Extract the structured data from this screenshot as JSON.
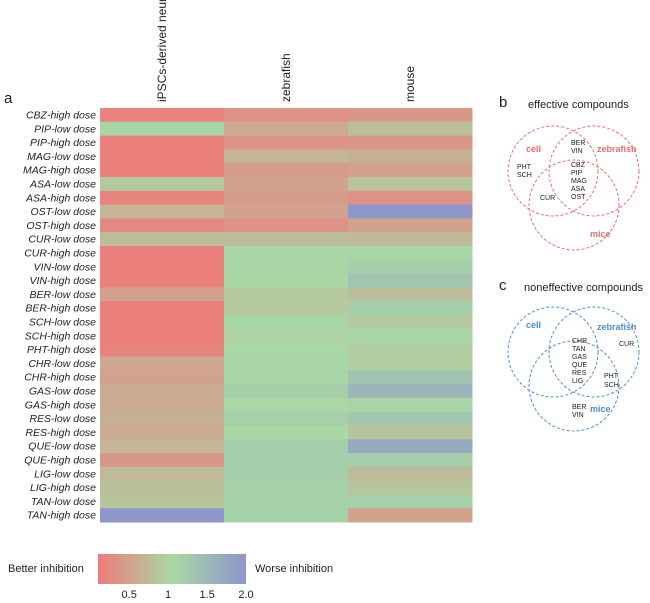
{
  "chart_data": [
    {
      "panel": "a",
      "type": "heatmap",
      "columns": [
        "iPSCs-derived neurons",
        "zebrafish",
        "mouse"
      ],
      "rows": [
        "CBZ-high dose",
        "PIP-low dose",
        "PIP-high dose",
        "MAG-low dose",
        "MAG-high dose",
        "ASA-low dose",
        "ASA-high dose",
        "OST-low dose",
        "OST-high dose",
        "CUR-low dose",
        "CUR-high dose",
        "VIN-low dose",
        "VIN-high dose",
        "BER-low dose",
        "BER-high dose",
        "SCH-low dose",
        "SCH-high dose",
        "PHT-high dose",
        "CHR-low dose",
        "CHR-high dose",
        "GAS-low dose",
        "GAS-high dose",
        "RES-low dose",
        "RES-high dose",
        "QUE-low dose",
        "QUE-high dose",
        "LIG-low dose",
        "LIG-high dose",
        "TAN-low dose",
        "TAN-high dose"
      ],
      "values": [
        [
          0.2,
          0.35,
          0.4
        ],
        [
          1.1,
          0.6,
          0.8
        ],
        [
          0.15,
          0.35,
          0.4
        ],
        [
          0.15,
          0.7,
          0.65
        ],
        [
          0.15,
          0.45,
          0.5
        ],
        [
          0.9,
          0.5,
          0.85
        ],
        [
          0.2,
          0.45,
          0.35
        ],
        [
          0.7,
          0.5,
          2.0
        ],
        [
          0.25,
          0.35,
          0.5
        ],
        [
          0.8,
          0.8,
          0.75
        ],
        [
          0.15,
          1.1,
          1.1
        ],
        [
          0.15,
          1.1,
          1.2
        ],
        [
          0.15,
          1.05,
          1.35
        ],
        [
          0.5,
          0.9,
          0.8
        ],
        [
          0.15,
          0.9,
          1.2
        ],
        [
          0.15,
          1.1,
          0.9
        ],
        [
          0.15,
          1.0,
          1.1
        ],
        [
          0.2,
          1.05,
          0.95
        ],
        [
          0.55,
          1.1,
          0.95
        ],
        [
          0.5,
          1.1,
          1.35
        ],
        [
          0.6,
          1.2,
          1.55
        ],
        [
          0.6,
          1.05,
          1.1
        ],
        [
          0.65,
          1.15,
          1.3
        ],
        [
          0.6,
          1.05,
          0.85
        ],
        [
          0.7,
          1.2,
          1.7
        ],
        [
          0.4,
          1.2,
          1.2
        ],
        [
          0.75,
          1.2,
          0.75
        ],
        [
          0.8,
          1.15,
          0.85
        ],
        [
          0.85,
          1.15,
          1.15
        ],
        [
          2.0,
          1.15,
          0.5
        ]
      ],
      "colorbar": {
        "ticks": [
          0.5,
          1.0,
          1.5,
          2.0
        ],
        "tick_labels": [
          "0.5",
          "1",
          "1.5",
          "2.0"
        ],
        "min": 0.1,
        "max": 2.0,
        "left_label": "Better inhibition",
        "right_label": "Worse inhibition",
        "colors": [
          "#ef7a7a",
          "#a9d8a4",
          "#8f96cc"
        ]
      }
    },
    {
      "panel": "b",
      "type": "venn",
      "title": "effective compounds",
      "color": "#e8706a",
      "sets": [
        "cell",
        "zebrafish",
        "mice"
      ],
      "regions": {
        "cell_zebrafish": [
          "BER",
          "VIN"
        ],
        "cell_only": [
          "PHT",
          "SCH"
        ],
        "all_three": [
          "CBZ",
          "PIP",
          "MAG",
          "ASA",
          "OST"
        ],
        "cell_mice": [
          "CUR"
        ]
      }
    },
    {
      "panel": "c",
      "type": "venn",
      "title": "noneffective compounds",
      "color": "#4f8fd0",
      "sets": [
        "cell",
        "zebrafish",
        "mice"
      ],
      "regions": {
        "all_three": [
          "CHR",
          "TAN",
          "GAS",
          "QUE",
          "RES",
          "LIG"
        ],
        "zebrafish_only": [
          "CUR"
        ],
        "zebrafish_mice": [
          "PHT",
          "SCH"
        ],
        "mice_only": [
          "BER",
          "VIN"
        ]
      }
    }
  ],
  "panel_labels": {
    "a": "a",
    "b": "b",
    "c": "c"
  }
}
